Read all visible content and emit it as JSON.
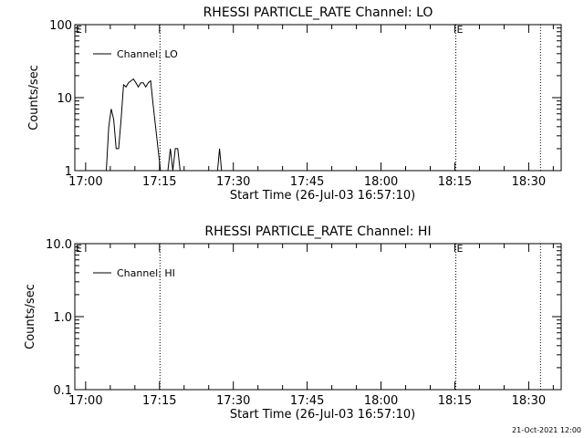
{
  "chart_data": [
    {
      "type": "line",
      "title": "RHESSI PARTICLE_RATE Channel: LO",
      "xlabel": "Start Time (26-Jul-03 16:57:10)",
      "ylabel": "Counts/sec",
      "yscale": "log",
      "ylim": [
        1,
        100
      ],
      "xlim_min": [
        -2.2,
        96.6
      ],
      "y_ticks": [
        "1",
        "10",
        "100"
      ],
      "x_ticks": [
        {
          "label": "17:00",
          "min": 0
        },
        {
          "label": "17:15",
          "min": 15
        },
        {
          "label": "17:30",
          "min": 30
        },
        {
          "label": "17:45",
          "min": 45
        },
        {
          "label": "18:00",
          "min": 60
        },
        {
          "label": "18:15",
          "min": 75
        },
        {
          "label": "18:30",
          "min": 90
        }
      ],
      "markers": [
        {
          "min": 15.1,
          "label": ""
        },
        {
          "min": 75.2,
          "label": "E"
        },
        {
          "min": 92.4,
          "label": ""
        }
      ],
      "corner_label": "E",
      "legend": {
        "label": "Channel: LO",
        "position": "top-left"
      },
      "series": [
        {
          "name": "Channel: LO",
          "x": [
            4.2,
            4.7,
            5.2,
            5.7,
            6.2,
            6.7,
            7.2,
            7.7,
            8.2,
            8.7,
            9.2,
            9.7,
            10.2,
            10.7,
            11.2,
            11.7,
            12.2,
            12.7,
            13.2,
            13.7,
            14.2,
            14.7,
            15.2,
            15.7,
            16.2,
            16.7,
            17.2,
            17.7,
            18.2,
            18.7,
            19.2,
            19.7,
            20.2
          ],
          "y": [
            1,
            4,
            7,
            5,
            2,
            2,
            5,
            15,
            14,
            16,
            17,
            18,
            16,
            14,
            16,
            16,
            14,
            16,
            17,
            8,
            4,
            2,
            1,
            1,
            1,
            1,
            2,
            1,
            2,
            2,
            1,
            1,
            1
          ]
        },
        {
          "name": "spike",
          "x": [
            26.8,
            27.2,
            27.6
          ],
          "y": [
            1,
            2,
            1
          ]
        }
      ]
    },
    {
      "type": "line",
      "title": "RHESSI PARTICLE_RATE Channel: HI",
      "xlabel": "Start Time (26-Jul-03 16:57:10)",
      "ylabel": "Counts/sec",
      "yscale": "log",
      "ylim": [
        0.1,
        10
      ],
      "xlim_min": [
        -2.2,
        96.6
      ],
      "y_ticks": [
        "0.1",
        "1.0",
        "10.0"
      ],
      "x_ticks": [
        {
          "label": "17:00",
          "min": 0
        },
        {
          "label": "17:15",
          "min": 15
        },
        {
          "label": "17:30",
          "min": 30
        },
        {
          "label": "17:45",
          "min": 45
        },
        {
          "label": "18:00",
          "min": 60
        },
        {
          "label": "18:15",
          "min": 75
        },
        {
          "label": "18:30",
          "min": 90
        }
      ],
      "markers": [
        {
          "min": 15.1,
          "label": ""
        },
        {
          "min": 75.2,
          "label": "E"
        },
        {
          "min": 92.4,
          "label": ""
        }
      ],
      "corner_label": "E",
      "legend": {
        "label": "Channel: HI",
        "position": "top-left"
      },
      "series": []
    }
  ],
  "footer": {
    "timestamp": "21-Oct-2021 12:00"
  }
}
